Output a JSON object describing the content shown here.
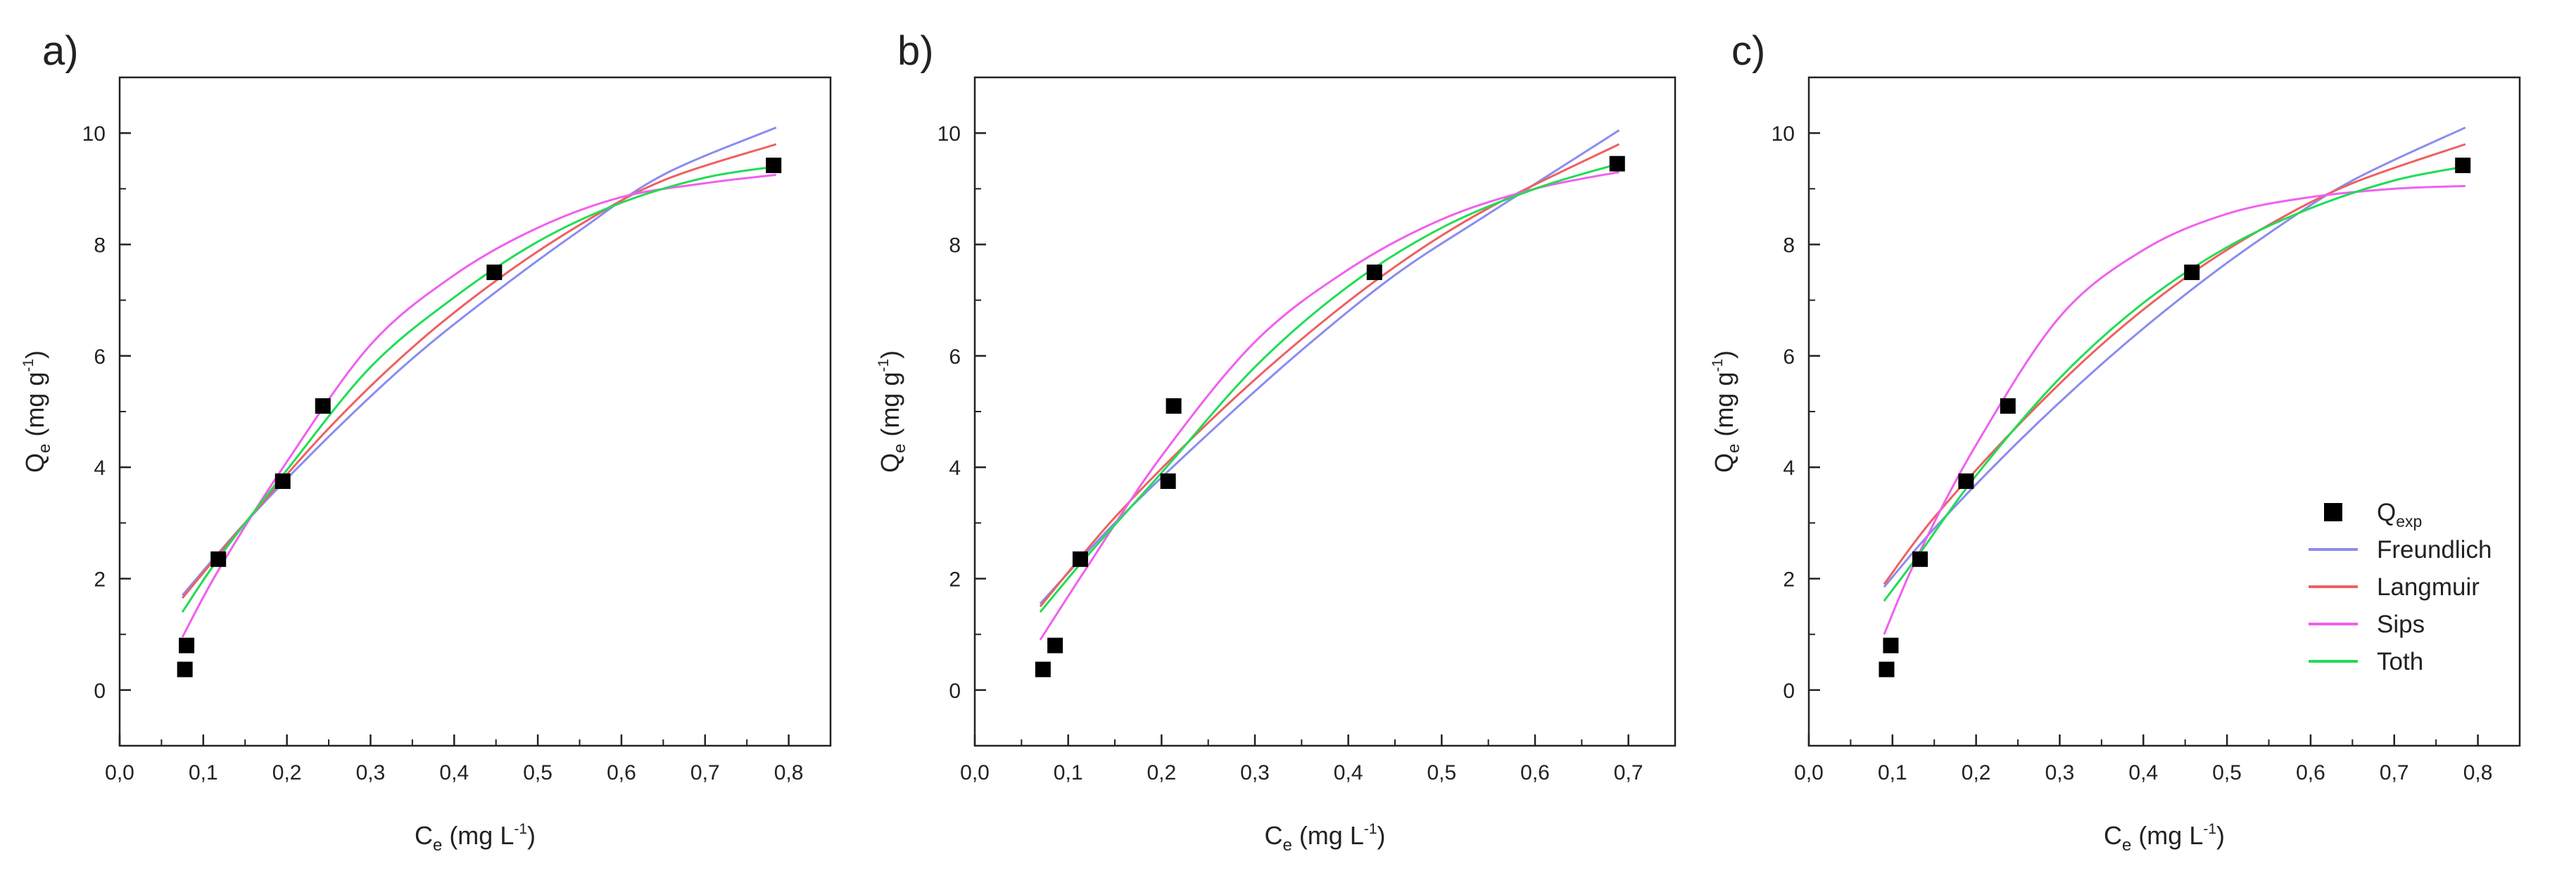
{
  "chart_data": [
    {
      "panel": "a)",
      "type": "scatter+line",
      "xlabel": {
        "main": "C",
        "sub": "e",
        "unit_open": " (mg L",
        "sup": "-1",
        "unit_close": ")"
      },
      "ylabel": {
        "main": "Q",
        "sub": "e",
        "unit_open": " (mg g",
        "sup": "-1",
        "unit_close": ")"
      },
      "xlim": [
        0,
        0.85
      ],
      "ylim": [
        -1,
        11
      ],
      "xticks": [
        0.0,
        0.1,
        0.2,
        0.3,
        0.4,
        0.5,
        0.6,
        0.7,
        0.8
      ],
      "xtick_labels": [
        "0,0",
        "0,1",
        "0,2",
        "0,3",
        "0,4",
        "0,5",
        "0,6",
        "0,7",
        "0,8"
      ],
      "yticks": [
        0,
        2,
        4,
        6,
        8,
        10
      ],
      "ytick_labels": [
        "0",
        "2",
        "4",
        "6",
        "8",
        "10"
      ],
      "points": {
        "x": [
          0.078,
          0.08,
          0.118,
          0.195,
          0.243,
          0.448,
          0.782
        ],
        "y": [
          0.37,
          0.8,
          2.35,
          3.75,
          5.1,
          7.5,
          9.42
        ]
      },
      "series": [
        {
          "name": "Freundlich",
          "x": [
            0.075,
            0.15,
            0.25,
            0.35,
            0.45,
            0.55,
            0.65,
            0.785
          ],
          "y": [
            1.7,
            3.0,
            4.55,
            5.95,
            7.15,
            8.25,
            9.25,
            10.1
          ]
        },
        {
          "name": "Langmuir",
          "x": [
            0.075,
            0.15,
            0.25,
            0.35,
            0.45,
            0.55,
            0.65,
            0.785
          ],
          "y": [
            1.65,
            3.0,
            4.7,
            6.15,
            7.35,
            8.35,
            9.15,
            9.8
          ]
        },
        {
          "name": "Sips",
          "x": [
            0.075,
            0.12,
            0.2,
            0.3,
            0.4,
            0.5,
            0.6,
            0.7,
            0.785
          ],
          "y": [
            0.95,
            2.2,
            4.1,
            6.2,
            7.45,
            8.3,
            8.85,
            9.1,
            9.25
          ]
        },
        {
          "name": "Toth",
          "x": [
            0.075,
            0.12,
            0.2,
            0.3,
            0.4,
            0.5,
            0.6,
            0.7,
            0.785
          ],
          "y": [
            1.4,
            2.4,
            3.95,
            5.8,
            7.05,
            8.05,
            8.75,
            9.2,
            9.4
          ]
        }
      ]
    },
    {
      "panel": "b)",
      "type": "scatter+line",
      "xlabel": {
        "main": "C",
        "sub": "e",
        "unit_open": " (mg L",
        "sup": "-1",
        "unit_close": ")"
      },
      "ylabel": {
        "main": "Q",
        "sub": "e",
        "unit_open": " (mg g",
        "sup": "-1",
        "unit_close": ")"
      },
      "xlim": [
        0,
        0.75
      ],
      "ylim": [
        -1,
        11
      ],
      "xticks": [
        0.0,
        0.1,
        0.2,
        0.3,
        0.4,
        0.5,
        0.6,
        0.7
      ],
      "xtick_labels": [
        "0,0",
        "0,1",
        "0,2",
        "0,3",
        "0,4",
        "0,5",
        "0,6",
        "0,7"
      ],
      "yticks": [
        0,
        2,
        4,
        6,
        8,
        10
      ],
      "ytick_labels": [
        "0",
        "2",
        "4",
        "6",
        "8",
        "10"
      ],
      "points": {
        "x": [
          0.073,
          0.086,
          0.113,
          0.207,
          0.213,
          0.428,
          0.688
        ],
        "y": [
          0.37,
          0.8,
          2.35,
          3.75,
          5.1,
          7.5,
          9.45
        ]
      },
      "series": [
        {
          "name": "Freundlich",
          "x": [
            0.07,
            0.15,
            0.25,
            0.35,
            0.45,
            0.55,
            0.69
          ],
          "y": [
            1.55,
            3.0,
            4.6,
            6.1,
            7.45,
            8.55,
            10.05
          ]
        },
        {
          "name": "Langmuir",
          "x": [
            0.07,
            0.15,
            0.25,
            0.35,
            0.45,
            0.55,
            0.69
          ],
          "y": [
            1.5,
            3.1,
            4.8,
            6.3,
            7.6,
            8.65,
            9.8
          ]
        },
        {
          "name": "Sips",
          "x": [
            0.07,
            0.12,
            0.2,
            0.3,
            0.4,
            0.5,
            0.6,
            0.69
          ],
          "y": [
            0.9,
            2.2,
            4.2,
            6.25,
            7.55,
            8.45,
            9.0,
            9.3
          ]
        },
        {
          "name": "Toth",
          "x": [
            0.07,
            0.12,
            0.2,
            0.3,
            0.4,
            0.5,
            0.6,
            0.69
          ],
          "y": [
            1.4,
            2.4,
            3.9,
            5.8,
            7.25,
            8.3,
            9.0,
            9.45
          ]
        }
      ]
    },
    {
      "panel": "c)",
      "type": "scatter+line",
      "xlabel": {
        "main": "C",
        "sub": "e",
        "unit_open": " (mg L",
        "sup": "-1",
        "unit_close": ")"
      },
      "ylabel": {
        "main": "Q",
        "sub": "e",
        "unit_open": " (mg g",
        "sup": "-1",
        "unit_close": ")"
      },
      "xlim": [
        0,
        0.85
      ],
      "ylim": [
        -1,
        11
      ],
      "xticks": [
        0.0,
        0.1,
        0.2,
        0.3,
        0.4,
        0.5,
        0.6,
        0.7,
        0.8
      ],
      "xtick_labels": [
        "0,0",
        "0,1",
        "0,2",
        "0,3",
        "0,4",
        "0,5",
        "0,6",
        "0,7",
        "0,8"
      ],
      "yticks": [
        0,
        2,
        4,
        6,
        8,
        10
      ],
      "ytick_labels": [
        "0",
        "2",
        "4",
        "6",
        "8",
        "10"
      ],
      "points": {
        "x": [
          0.093,
          0.098,
          0.133,
          0.188,
          0.238,
          0.458,
          0.782
        ],
        "y": [
          0.37,
          0.8,
          2.35,
          3.75,
          5.1,
          7.5,
          9.42
        ]
      },
      "series": [
        {
          "name": "Freundlich",
          "x": [
            0.09,
            0.15,
            0.25,
            0.35,
            0.45,
            0.55,
            0.65,
            0.785
          ],
          "y": [
            1.85,
            2.9,
            4.45,
            5.85,
            7.1,
            8.2,
            9.15,
            10.1
          ]
        },
        {
          "name": "Langmuir",
          "x": [
            0.09,
            0.15,
            0.25,
            0.35,
            0.45,
            0.55,
            0.65,
            0.785
          ],
          "y": [
            1.9,
            3.1,
            4.75,
            6.2,
            7.4,
            8.35,
            9.1,
            9.8
          ]
        },
        {
          "name": "Sips",
          "x": [
            0.09,
            0.13,
            0.2,
            0.3,
            0.4,
            0.5,
            0.6,
            0.7,
            0.785
          ],
          "y": [
            1.0,
            2.4,
            4.4,
            6.7,
            7.9,
            8.55,
            8.85,
            9.0,
            9.05
          ]
        },
        {
          "name": "Toth",
          "x": [
            0.09,
            0.13,
            0.2,
            0.3,
            0.4,
            0.5,
            0.6,
            0.7,
            0.785
          ],
          "y": [
            1.6,
            2.4,
            3.85,
            5.6,
            6.95,
            7.95,
            8.65,
            9.15,
            9.4
          ]
        }
      ]
    }
  ],
  "legend": {
    "items": [
      {
        "key": "points",
        "label": "Q",
        "sub": "exp"
      },
      {
        "key": "Freundlich",
        "label": "Freundlich"
      },
      {
        "key": "Langmuir",
        "label": "Langmuir"
      },
      {
        "key": "Sips",
        "label": "Sips"
      },
      {
        "key": "Toth",
        "label": "Toth"
      }
    ]
  },
  "colors": {
    "Freundlich": "#8a8cf0",
    "Langmuir": "#ef6060",
    "Sips": "#f060f0",
    "Toth": "#20dd55",
    "points": "#000000",
    "axis": "#222222"
  }
}
